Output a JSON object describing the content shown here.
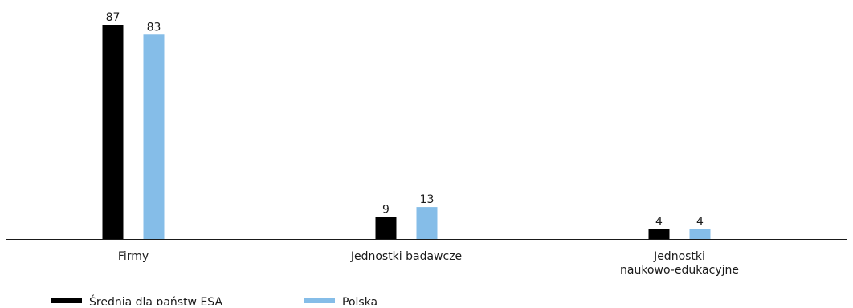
{
  "chart_data": {
    "type": "bar",
    "categories": [
      [
        "Firmy"
      ],
      [
        "Jednostki badawcze"
      ],
      [
        "Jednostki",
        "naukowo-edukacyjne"
      ]
    ],
    "series": [
      {
        "name": "Średnia dla państw ESA",
        "color": "#000000",
        "values": [
          87,
          9,
          4
        ]
      },
      {
        "name": "Polska",
        "color": "#85bde8",
        "values": [
          83,
          13,
          4
        ]
      }
    ],
    "ylim": [
      0,
      87
    ],
    "grid": false,
    "legend_position": "bottom-left",
    "data_labels": true
  }
}
